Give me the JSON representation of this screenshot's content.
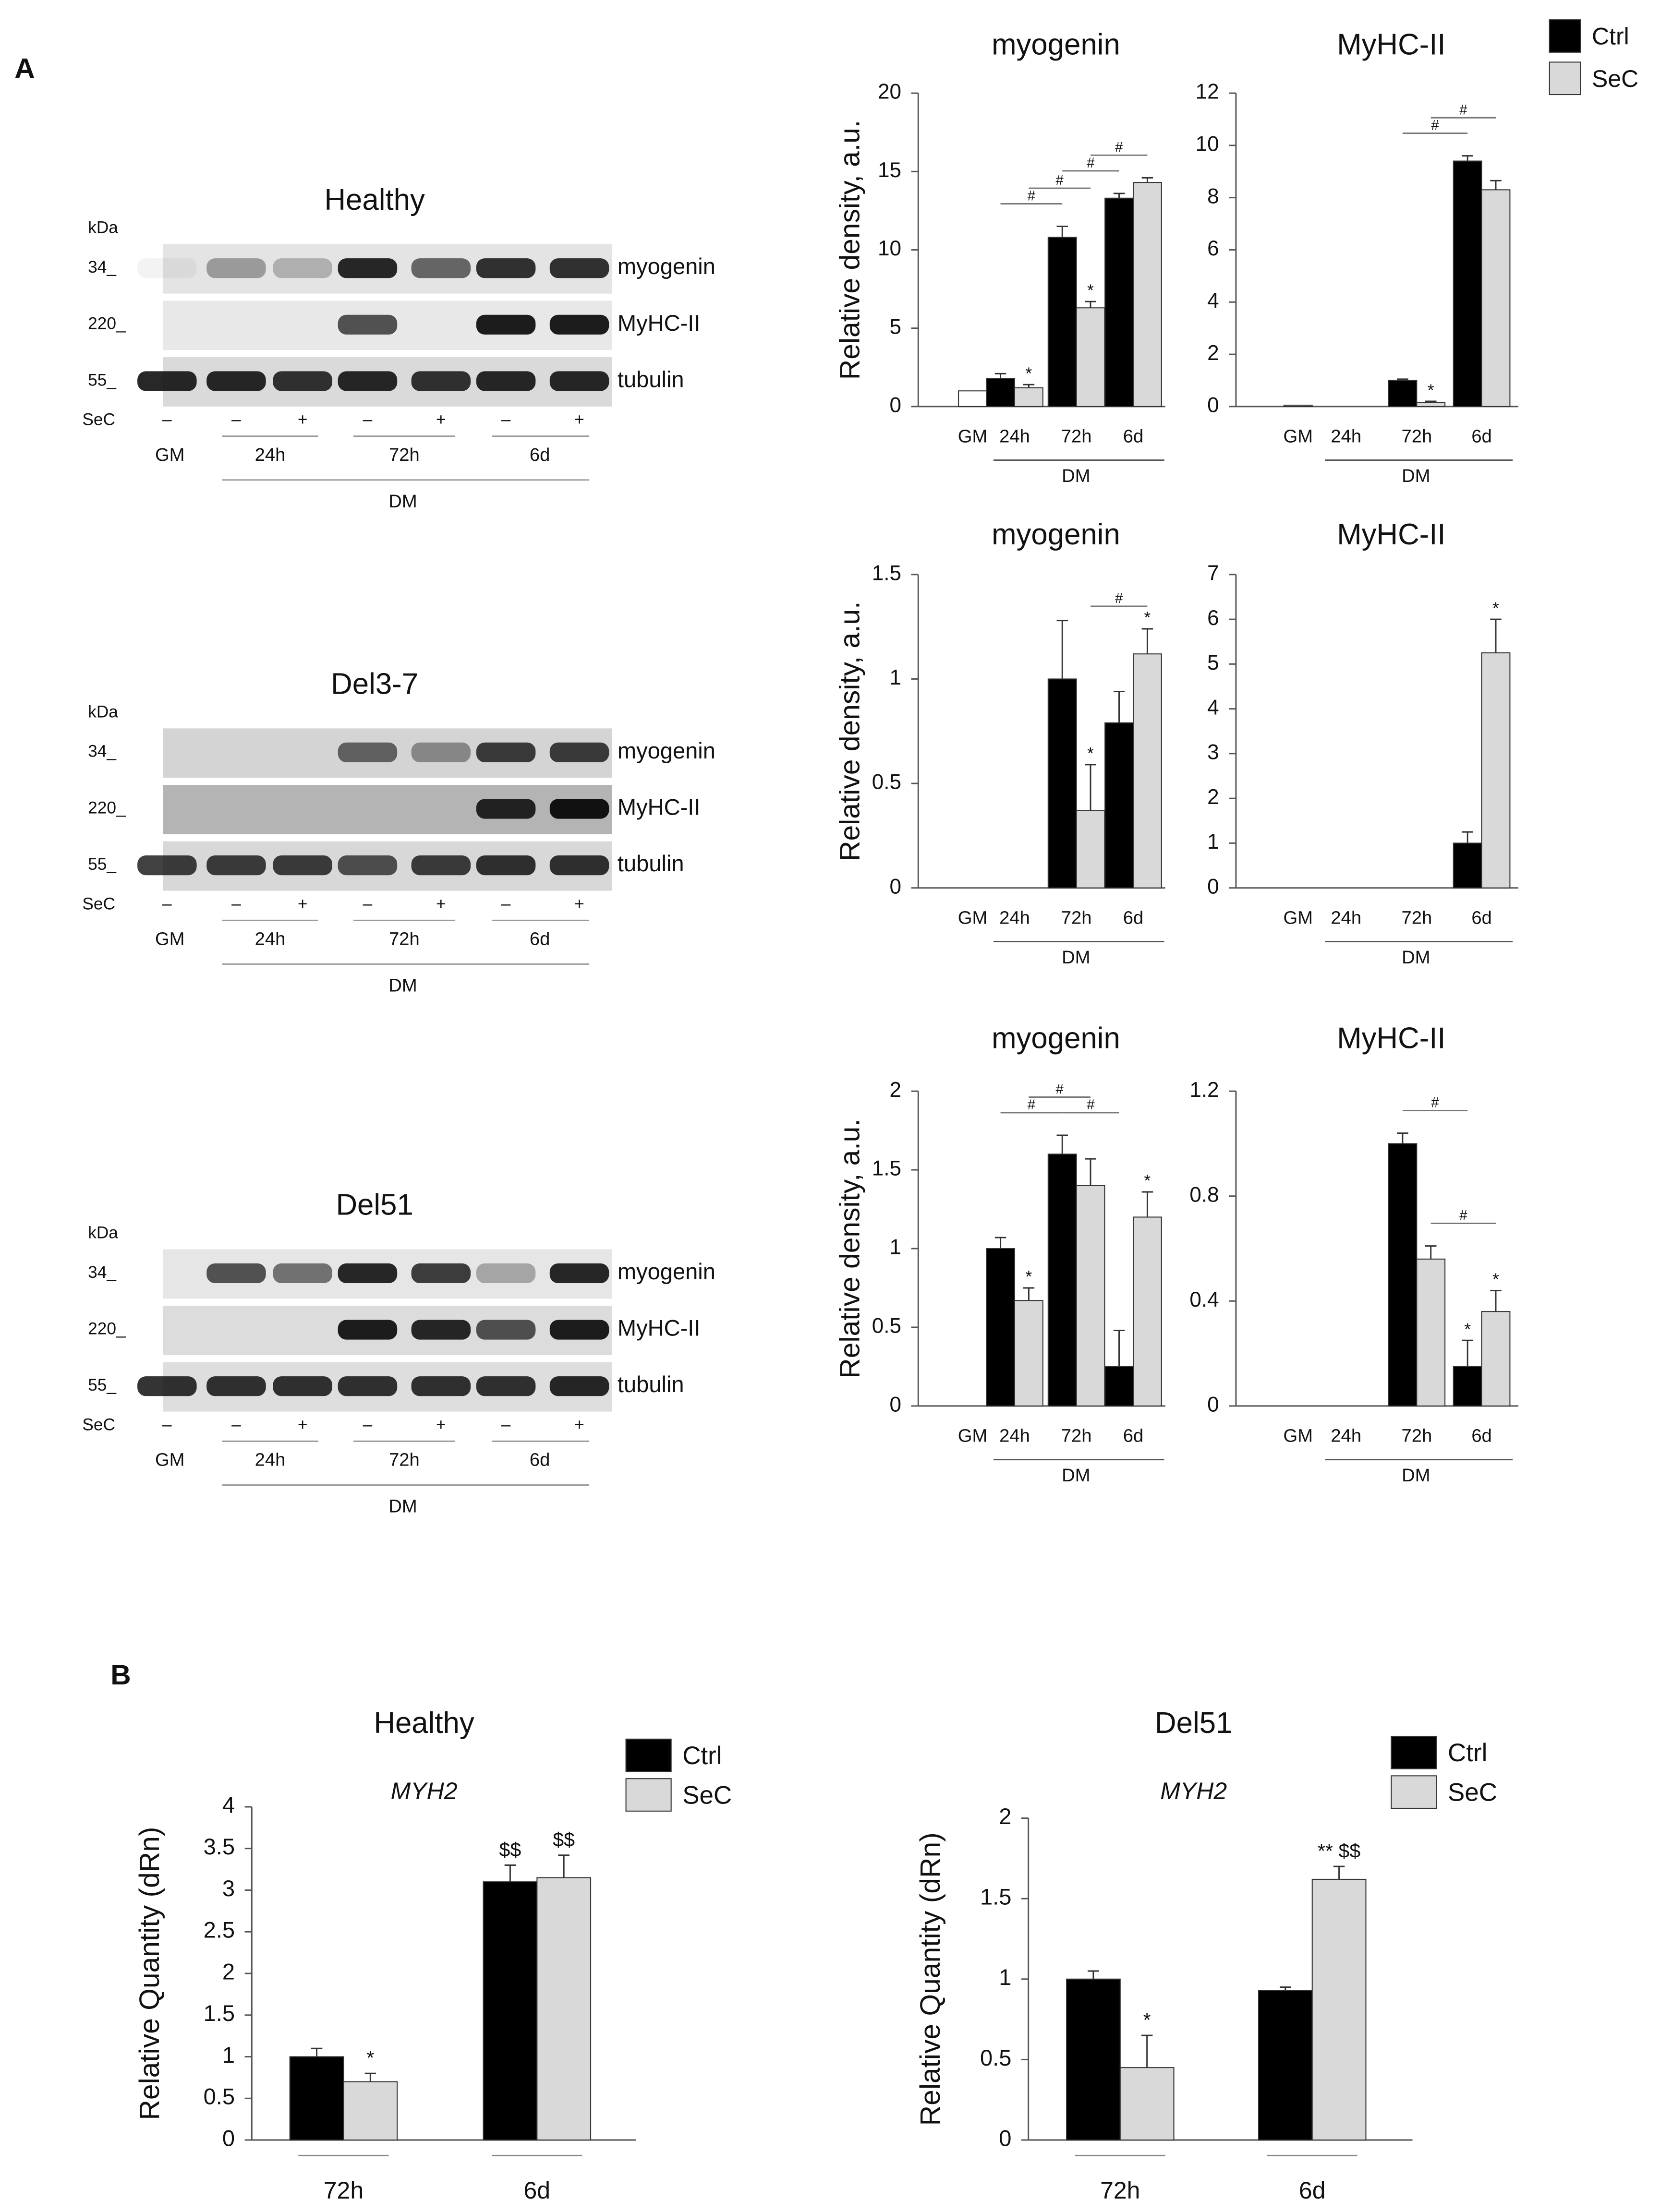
{
  "panel_labels": [
    "A",
    "B"
  ],
  "blots": [
    {
      "title": "Healthy",
      "kda_label": "kDa",
      "proteins": [
        {
          "kda": "34_",
          "name": "myogenin"
        },
        {
          "kda": "220_",
          "name": "MyHC-II"
        },
        {
          "kda": "55_",
          "name": "tubulin"
        }
      ],
      "treatment_label": "SeC",
      "signs": [
        "–",
        "–",
        "+",
        "–",
        "+",
        "–",
        "+"
      ],
      "lanes": [
        "GM",
        "24h",
        "72h",
        "6d"
      ],
      "group_label": "DM"
    },
    {
      "title": "Del3-7",
      "kda_label": "kDa",
      "proteins": [
        {
          "kda": "34_",
          "name": "myogenin"
        },
        {
          "kda": "220_",
          "name": "MyHC-II"
        },
        {
          "kda": "55_",
          "name": "tubulin"
        }
      ],
      "treatment_label": "SeC",
      "signs": [
        "–",
        "–",
        "+",
        "–",
        "+",
        "–",
        "+"
      ],
      "lanes": [
        "GM",
        "24h",
        "72h",
        "6d"
      ],
      "group_label": "DM"
    },
    {
      "title": "Del51",
      "kda_label": "kDa",
      "proteins": [
        {
          "kda": "34_",
          "name": "myogenin"
        },
        {
          "kda": "220_",
          "name": "MyHC-II"
        },
        {
          "kda": "55_",
          "name": "tubulin"
        }
      ],
      "treatment_label": "SeC",
      "signs": [
        "–",
        "–",
        "+",
        "–",
        "+",
        "–",
        "+"
      ],
      "lanes": [
        "GM",
        "24h",
        "72h",
        "6d"
      ],
      "group_label": "DM"
    }
  ],
  "chart_data": [
    {
      "type": "bar",
      "title": "myogenin",
      "ylabel": "Relative density, a.u.",
      "categories": [
        "GM",
        "24h",
        "72h",
        "6d"
      ],
      "group_label": "DM",
      "gm_color": "#ffffff",
      "series": [
        {
          "name": "Ctrl",
          "color": "#000000",
          "values": [
            1.0,
            1.8,
            10.8,
            13.3
          ],
          "errors": [
            null,
            0.3,
            0.7,
            0.3
          ],
          "annotations": [
            null,
            null,
            null,
            null
          ]
        },
        {
          "name": "SeC",
          "color": "#d9d9d9",
          "values": [
            null,
            1.2,
            6.3,
            14.3
          ],
          "errors": [
            null,
            0.2,
            0.4,
            0.3
          ],
          "annotations": [
            null,
            "*",
            "*",
            null
          ]
        }
      ],
      "ylim": [
        0,
        20
      ],
      "yticks": [
        0,
        5,
        10,
        15,
        20
      ],
      "brackets": [
        {
          "label": "#",
          "series": 0,
          "from": 1,
          "to": 2
        },
        {
          "label": "#",
          "series": 1,
          "from": 1,
          "to": 2
        },
        {
          "label": "#",
          "series": 0,
          "from": 2,
          "to": 3
        },
        {
          "label": "#",
          "series": 1,
          "from": 2,
          "to": 3
        }
      ]
    },
    {
      "type": "bar",
      "title": "MyHC-II",
      "categories": [
        "GM",
        "24h",
        "72h",
        "6d"
      ],
      "group_label": "DM",
      "gm_color": "#ffffff",
      "series": [
        {
          "name": "Ctrl",
          "color": "#000000",
          "values": [
            0.05,
            0,
            1.0,
            9.4
          ],
          "errors": [
            null,
            null,
            0.05,
            0.2
          ],
          "annotations": [
            null,
            null,
            null,
            null
          ]
        },
        {
          "name": "SeC",
          "color": "#d9d9d9",
          "values": [
            null,
            0,
            0.15,
            8.3
          ],
          "errors": [
            null,
            null,
            0.05,
            0.35
          ],
          "annotations": [
            null,
            null,
            "*",
            null
          ]
        }
      ],
      "ylim": [
        0,
        12
      ],
      "yticks": [
        0,
        2,
        4,
        6,
        8,
        10,
        12
      ],
      "brackets": [
        {
          "label": "#",
          "series": 0,
          "from": 2,
          "to": 3
        },
        {
          "label": "#",
          "series": 1,
          "from": 2,
          "to": 3
        }
      ]
    },
    {
      "type": "bar",
      "title": "myogenin",
      "ylabel": "Relative density, a.u.",
      "categories": [
        "GM",
        "24h",
        "72h",
        "6d"
      ],
      "group_label": "DM",
      "gm_color": "#ffffff",
      "series": [
        {
          "name": "Ctrl",
          "color": "#000000",
          "values": [
            0,
            0,
            1.0,
            0.79
          ],
          "errors": [
            null,
            null,
            0.28,
            0.15
          ],
          "annotations": [
            null,
            null,
            null,
            null
          ]
        },
        {
          "name": "SeC",
          "color": "#d9d9d9",
          "values": [
            null,
            0,
            0.37,
            1.12
          ],
          "errors": [
            null,
            null,
            0.22,
            0.12
          ],
          "annotations": [
            null,
            null,
            "*",
            "*"
          ]
        }
      ],
      "ylim": [
        0,
        1.5
      ],
      "yticks": [
        0,
        0.5,
        1,
        1.5
      ],
      "brackets": [
        {
          "label": "#",
          "series": 1,
          "from": 2,
          "to": 3
        }
      ]
    },
    {
      "type": "bar",
      "title": "MyHC-II",
      "categories": [
        "GM",
        "24h",
        "72h",
        "6d"
      ],
      "group_label": "DM",
      "gm_color": "#ffffff",
      "series": [
        {
          "name": "Ctrl",
          "color": "#000000",
          "values": [
            0,
            0,
            0,
            1.0
          ],
          "errors": [
            null,
            null,
            null,
            0.25
          ],
          "annotations": [
            null,
            null,
            null,
            null
          ]
        },
        {
          "name": "SeC",
          "color": "#d9d9d9",
          "values": [
            null,
            0,
            0,
            5.25
          ],
          "errors": [
            null,
            null,
            null,
            0.75
          ],
          "annotations": [
            null,
            null,
            null,
            "*"
          ]
        }
      ],
      "ylim": [
        0,
        7
      ],
      "yticks": [
        0,
        1,
        2,
        3,
        4,
        5,
        6,
        7
      ]
    },
    {
      "type": "bar",
      "title": "myogenin",
      "ylabel": "Relative density, a.u.",
      "categories": [
        "GM",
        "24h",
        "72h",
        "6d"
      ],
      "group_label": "DM",
      "gm_color": "#ffffff",
      "series": [
        {
          "name": "Ctrl",
          "color": "#000000",
          "values": [
            null,
            1.0,
            1.6,
            0.25
          ],
          "errors": [
            null,
            0.07,
            0.12,
            0.23
          ],
          "annotations": [
            null,
            null,
            null,
            null
          ]
        },
        {
          "name": "SeC",
          "color": "#d9d9d9",
          "values": [
            null,
            0.67,
            1.4,
            1.2
          ],
          "errors": [
            null,
            0.08,
            0.17,
            0.16
          ],
          "annotations": [
            null,
            "*",
            null,
            "*"
          ]
        }
      ],
      "ylim": [
        0,
        2
      ],
      "yticks": [
        0,
        0.5,
        1,
        1.5,
        2
      ],
      "brackets": [
        {
          "label": "#",
          "series": 0,
          "from": 1,
          "to": 2
        },
        {
          "label": "#",
          "series": 1,
          "from": 1,
          "to": 2
        },
        {
          "label": "#",
          "series": 0,
          "from": 2,
          "to": 3
        }
      ]
    },
    {
      "type": "bar",
      "title": "MyHC-II",
      "categories": [
        "GM",
        "24h",
        "72h",
        "6d"
      ],
      "group_label": "DM",
      "gm_color": "#ffffff",
      "series": [
        {
          "name": "Ctrl",
          "color": "#000000",
          "values": [
            null,
            null,
            1.0,
            0.15
          ],
          "errors": [
            null,
            null,
            0.04,
            0.1
          ],
          "annotations": [
            null,
            null,
            null,
            "*"
          ]
        },
        {
          "name": "SeC",
          "color": "#d9d9d9",
          "values": [
            null,
            null,
            0.56,
            0.36
          ],
          "errors": [
            null,
            null,
            0.05,
            0.08
          ],
          "annotations": [
            null,
            null,
            null,
            "*"
          ]
        }
      ],
      "ylim": [
        0,
        1.2
      ],
      "yticks": [
        0,
        0.4,
        0.8,
        1.2
      ],
      "brackets": [
        {
          "label": "#",
          "series": 0,
          "from": 2,
          "to": 3
        },
        {
          "label": "#",
          "series": 1,
          "from": 2,
          "to": 3
        }
      ]
    },
    {
      "type": "bar",
      "title": "Healthy",
      "subtitle": "MYH2",
      "ylabel": "Relative Quantity (dRn)",
      "categories": [
        "72h",
        "6d"
      ],
      "series": [
        {
          "name": "Ctrl",
          "color": "#000000",
          "values": [
            1.0,
            3.1
          ],
          "errors": [
            0.1,
            0.2
          ],
          "annotations": [
            null,
            "$$"
          ]
        },
        {
          "name": "SeC",
          "color": "#d9d9d9",
          "values": [
            0.7,
            3.15
          ],
          "errors": [
            0.1,
            0.27
          ],
          "annotations": [
            "*",
            "$$"
          ]
        }
      ],
      "ylim": [
        0,
        4
      ],
      "yticks": [
        0,
        0.5,
        1,
        1.5,
        2,
        2.5,
        3,
        3.5,
        4
      ],
      "legend": "top-right"
    },
    {
      "type": "bar",
      "title": "Del51",
      "subtitle": "MYH2",
      "ylabel": "Relative Quantity (dRn)",
      "categories": [
        "72h",
        "6d"
      ],
      "series": [
        {
          "name": "Ctrl",
          "color": "#000000",
          "values": [
            1.0,
            0.93
          ],
          "errors": [
            0.05,
            0.02
          ],
          "annotations": [
            null,
            null
          ]
        },
        {
          "name": "SeC",
          "color": "#d9d9d9",
          "values": [
            0.45,
            1.62
          ],
          "errors": [
            0.2,
            0.08
          ],
          "annotations": [
            "*",
            "** $$"
          ]
        }
      ],
      "ylim": [
        0,
        2
      ],
      "yticks": [
        0,
        0.5,
        1,
        1.5,
        2
      ],
      "legend": "top-right"
    }
  ]
}
